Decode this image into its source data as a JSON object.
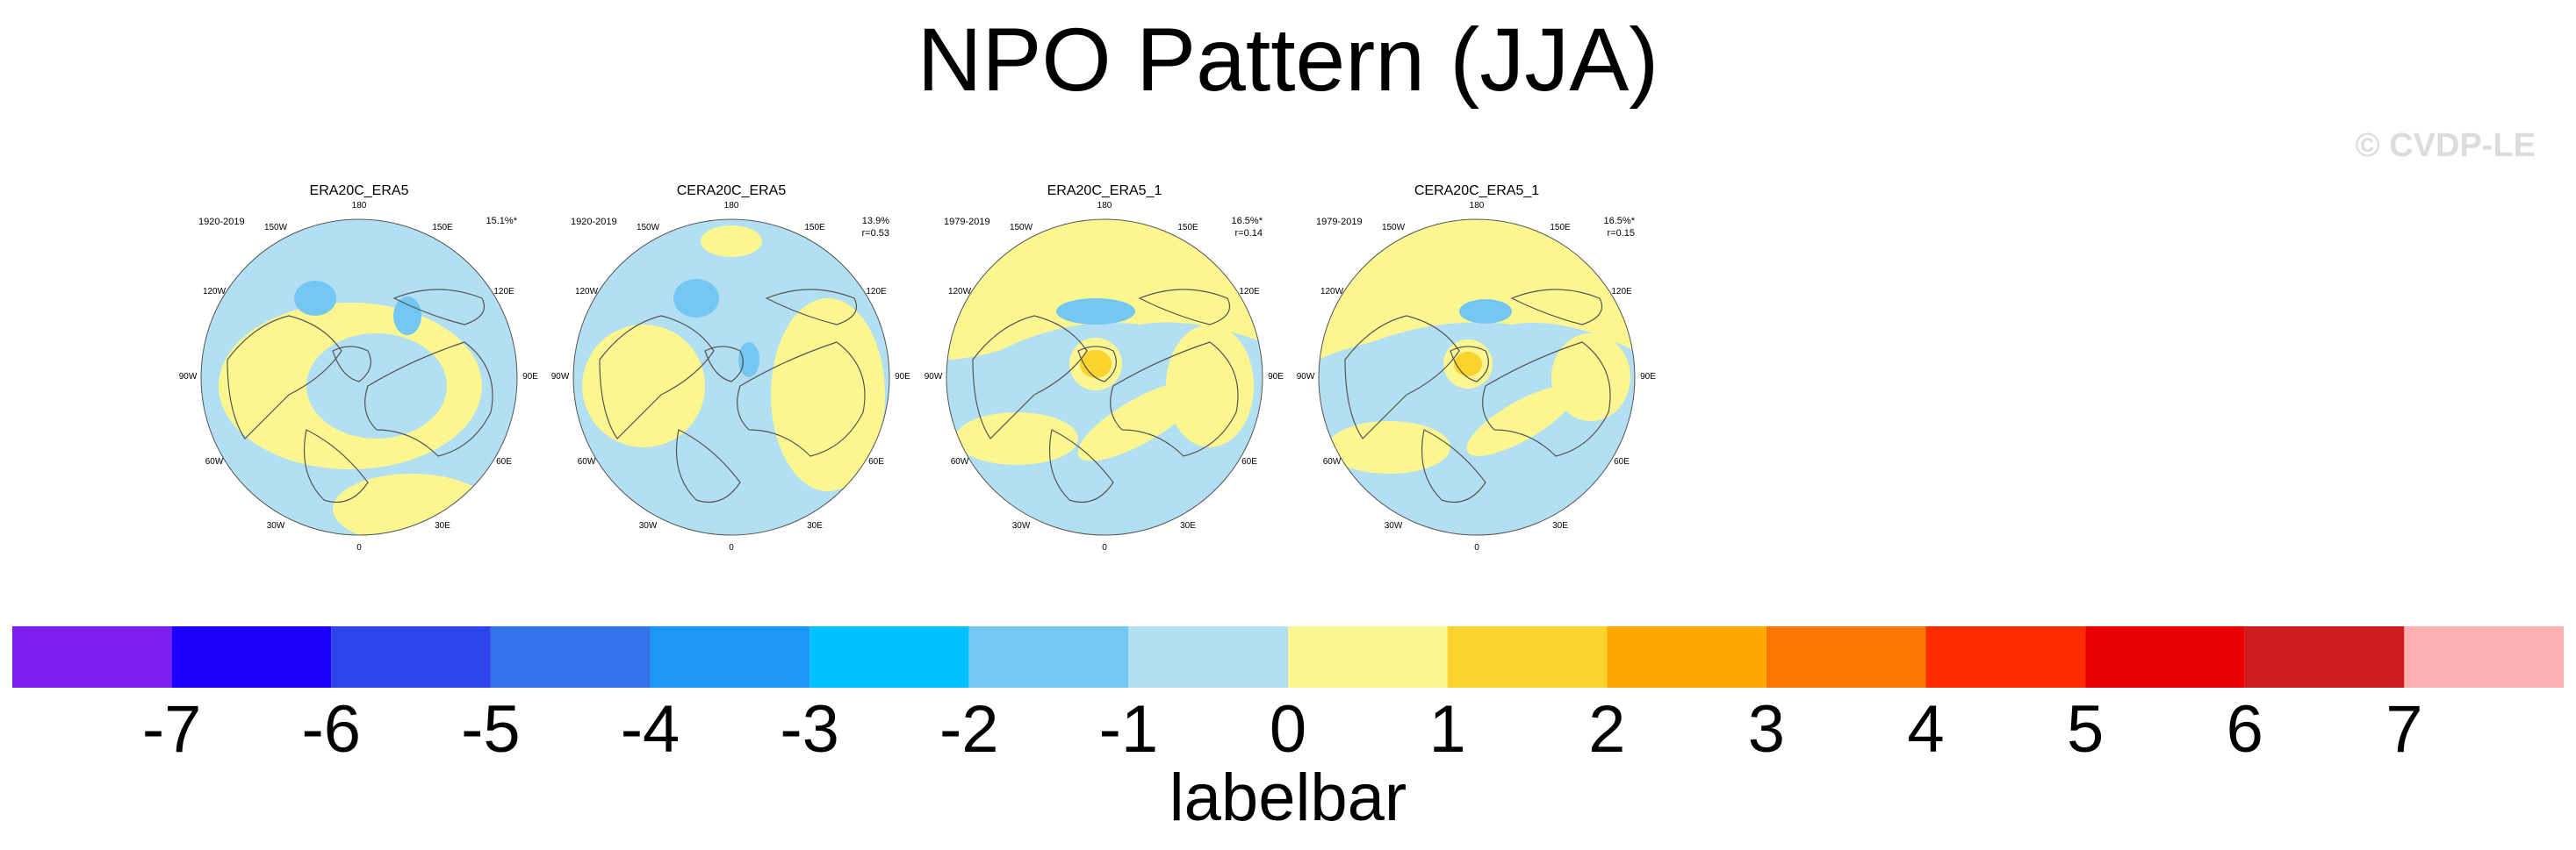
{
  "title": "NPO Pattern (JJA)",
  "watermark": "© CVDP-LE",
  "colors": {
    "ocean_neg1": "#b3dff3",
    "neg2": "#73c7f2",
    "pos1": "#fbf690",
    "pos2": "#fcd32c",
    "coast": "#555555"
  },
  "lon_labels": [
    "180",
    "150E",
    "120E",
    "90E",
    "60E",
    "30E",
    "0",
    "30W",
    "60W",
    "90W",
    "120W",
    "150W"
  ],
  "panels": [
    {
      "title": "ERA20C_ERA5",
      "period": "1920-2019",
      "stats_line1": "15.1%*",
      "stats_line2": ""
    },
    {
      "title": "CERA20C_ERA5",
      "period": "1920-2019",
      "stats_line1": "13.9%",
      "stats_line2": "r=0.53"
    },
    {
      "title": "ERA20C_ERA5_1",
      "period": "1979-2019",
      "stats_line1": "16.5%*",
      "stats_line2": "r=0.14"
    },
    {
      "title": "CERA20C_ERA5_1",
      "period": "1979-2019",
      "stats_line1": "16.5%*",
      "stats_line2": "r=0.15"
    }
  ],
  "chart_data": {
    "type": "heatmap",
    "title": "NPO Pattern (JJA)",
    "projection": "north polar stereographic",
    "colorbar": {
      "label": "labelbar",
      "ticks": [
        "-7",
        "-6",
        "-5",
        "-4",
        "-3",
        "-2",
        "-1",
        "0",
        "1",
        "2",
        "3",
        "4",
        "5",
        "6",
        "7"
      ],
      "colors": [
        "#7c1ff0",
        "#1d00fb",
        "#2d44ec",
        "#3472e9",
        "#1e96f5",
        "#00c1fd",
        "#73c7f2",
        "#b3dff3",
        "#fbf690",
        "#fcd32c",
        "#fda800",
        "#fd7700",
        "#fd2c00",
        "#e80000",
        "#cf1b1e",
        "#fdb1b3"
      ]
    },
    "series": [
      {
        "name": "ERA20C_ERA5",
        "period": "1920-2019",
        "explained_variance_pct": 15.1,
        "significant": true
      },
      {
        "name": "CERA20C_ERA5",
        "period": "1920-2019",
        "explained_variance_pct": 13.9,
        "pattern_correlation": 0.53
      },
      {
        "name": "ERA20C_ERA5_1",
        "period": "1979-2019",
        "explained_variance_pct": 16.5,
        "significant": true,
        "pattern_correlation": 0.14
      },
      {
        "name": "CERA20C_ERA5_1",
        "period": "1979-2019",
        "explained_variance_pct": 16.5,
        "significant": true,
        "pattern_correlation": 0.15
      }
    ]
  }
}
